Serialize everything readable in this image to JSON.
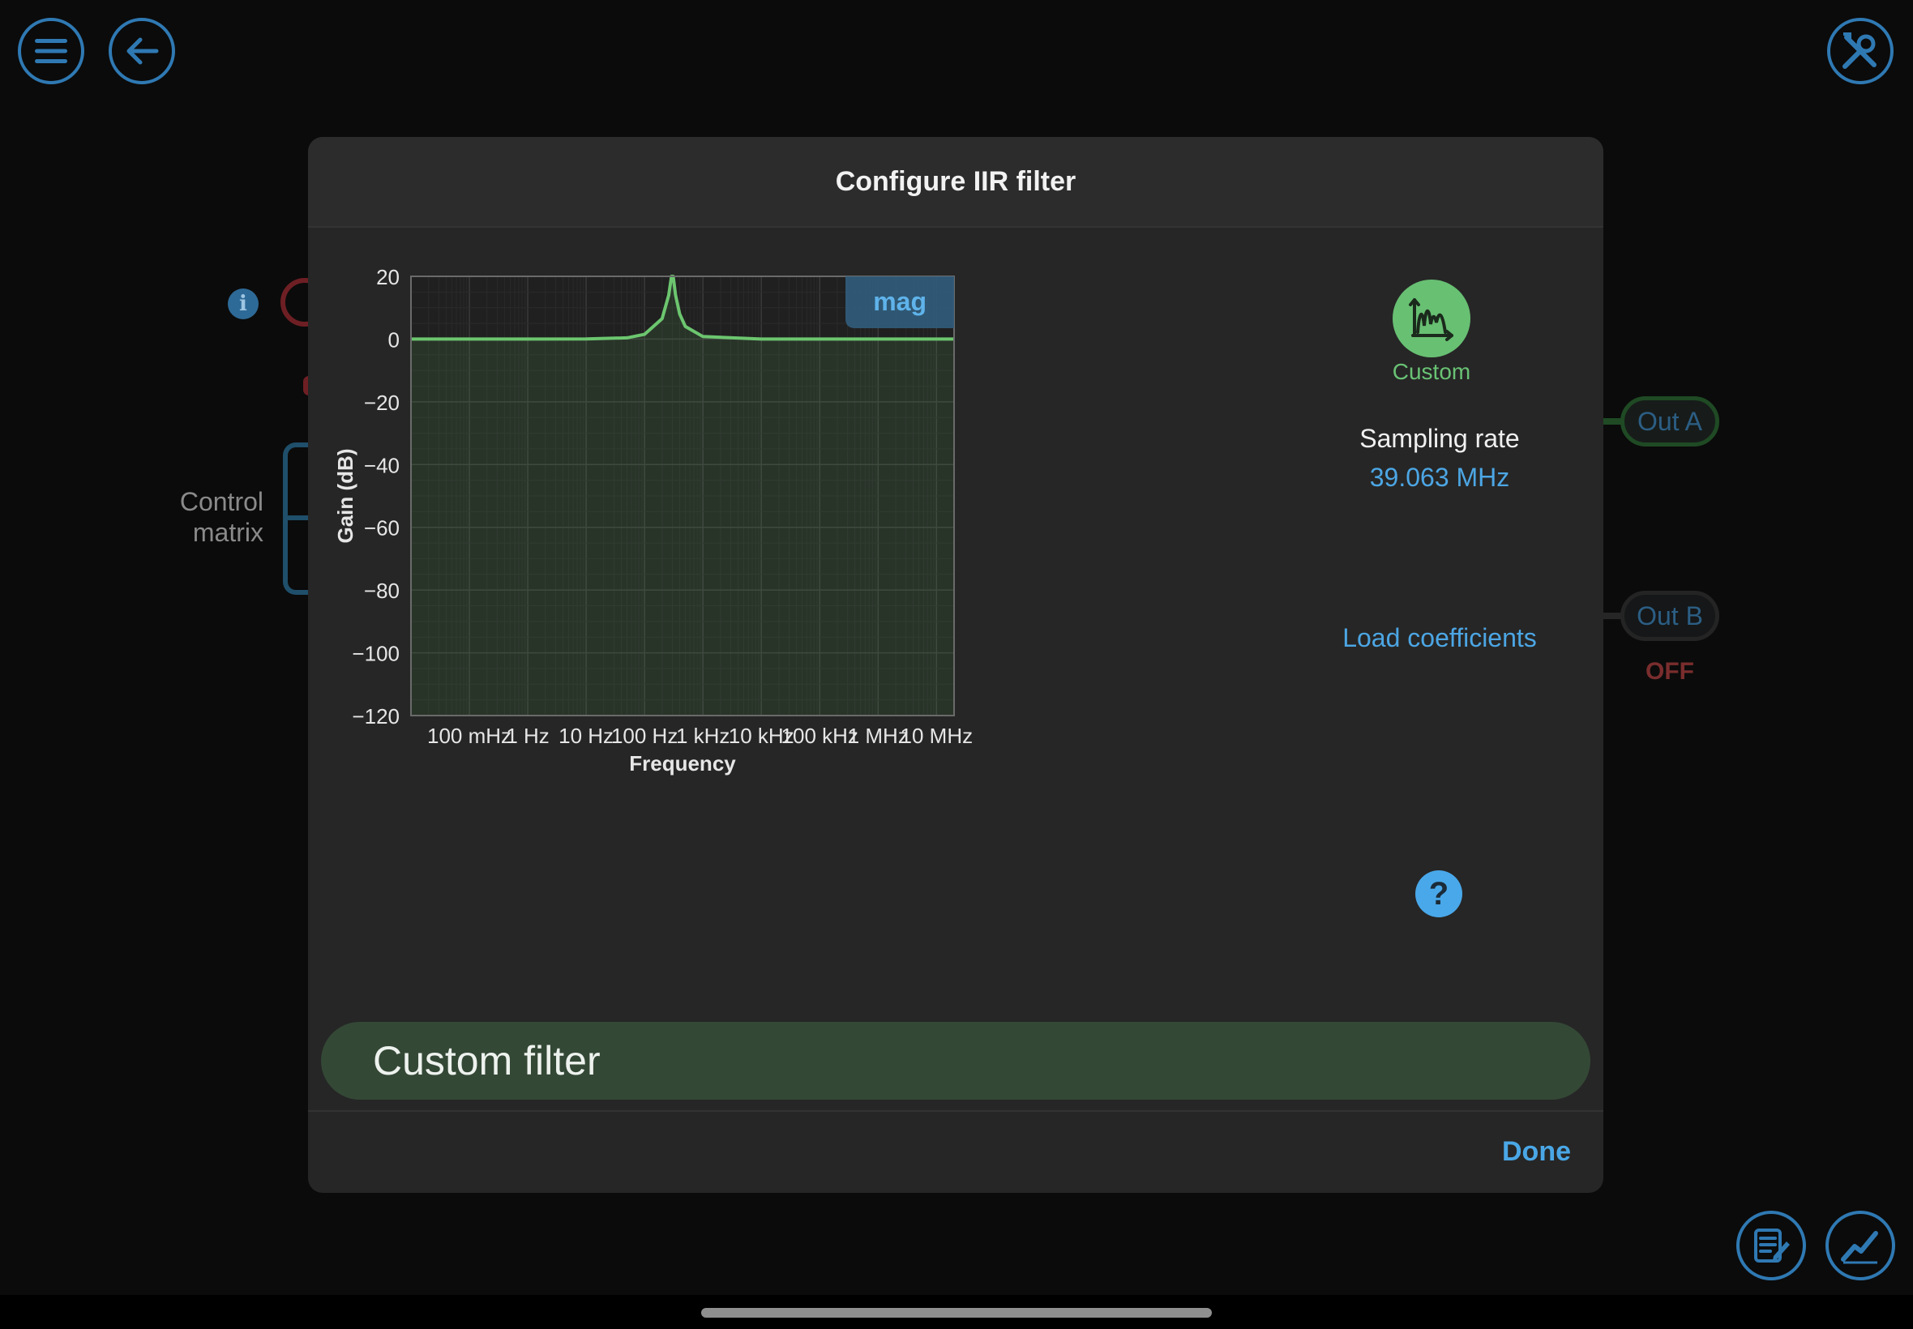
{
  "toolbar": {
    "menu_icon": "hamburger-menu-icon",
    "back_icon": "back-arrow-icon",
    "settings_icon": "wrench-screwdriver-icon",
    "notes_icon": "notes-edit-icon",
    "chart_icon": "trend-chart-icon"
  },
  "workspace": {
    "info_glyph": "i",
    "control_matrix_label": "Control\nmatrix",
    "out_a_label": "Out A",
    "out_b_label": "Out B",
    "out_b_status": "OFF"
  },
  "dialog": {
    "title": "Configure IIR filter",
    "filter_type_label": "Custom",
    "sampling_rate_title": "Sampling rate",
    "sampling_rate_value": "39.063 MHz",
    "load_coefficients_label": "Load coefficients",
    "help_glyph": "?",
    "filter_name": "Custom filter",
    "done_label": "Done"
  },
  "chart_data": {
    "type": "line",
    "xlabel": "Frequency",
    "ylabel": "Gain (dB)",
    "x_scale": "log",
    "xlim_hz": [
      0.01,
      20000000
    ],
    "ylim": [
      -120,
      20
    ],
    "y_ticks": [
      20,
      0,
      -20,
      -40,
      -60,
      -80,
      -100,
      -120
    ],
    "x_ticks": [
      {
        "value": 0.1,
        "label": "100 mHz"
      },
      {
        "value": 1,
        "label": "1 Hz"
      },
      {
        "value": 10,
        "label": "10 Hz"
      },
      {
        "value": 100,
        "label": "100 Hz"
      },
      {
        "value": 1000,
        "label": "1 kHz"
      },
      {
        "value": 10000,
        "label": "10 kHz"
      },
      {
        "value": 100000,
        "label": "100 kHz"
      },
      {
        "value": 1000000,
        "label": "1 MHz"
      },
      {
        "value": 10000000,
        "label": "10 MHz"
      }
    ],
    "nyquist_hz": 19531500,
    "mode_badge": "mag",
    "grid": true,
    "line_color": "#6cc66f",
    "series": [
      {
        "x": [
          0.01,
          1,
          10,
          50,
          100,
          200,
          260,
          290,
          300,
          310,
          340,
          400,
          500,
          1000,
          10000,
          19531500
        ],
        "y": [
          0,
          0,
          0.05,
          0.4,
          1.5,
          6.5,
          14,
          20,
          22,
          20,
          14,
          8,
          4,
          0.8,
          0,
          0
        ]
      }
    ]
  }
}
